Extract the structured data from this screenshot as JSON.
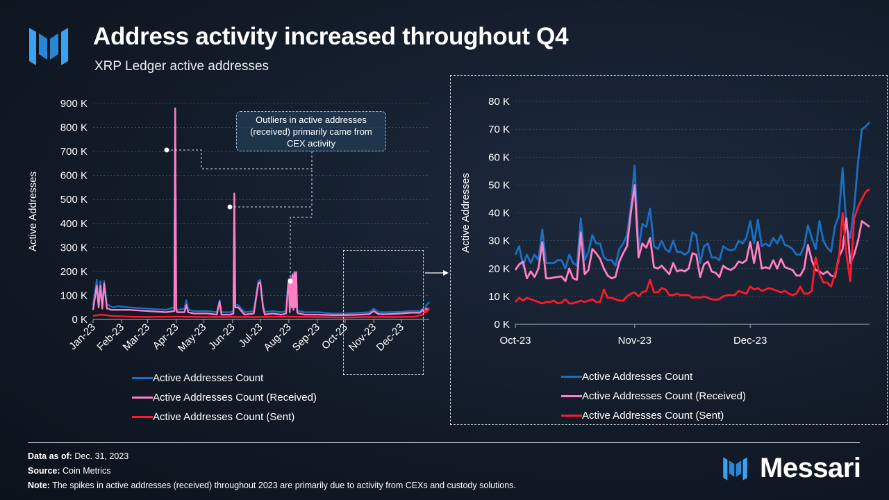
{
  "header": {
    "title": "Address activity increased throughout Q4",
    "subtitle": "XRP Ledger active addresses"
  },
  "colors": {
    "total": "#1a6fc2",
    "received": "#ff7fc4",
    "sent": "#ff1a2a"
  },
  "annotation": "Outliers in active addresses (received) primarily came from CEX activity",
  "chart_data": [
    {
      "type": "line",
      "id": "full-year",
      "xlabel": "",
      "ylabel": "Active Addresses",
      "ylim": [
        0,
        900000
      ],
      "yticks": [
        0,
        100000,
        200000,
        300000,
        400000,
        500000,
        600000,
        700000,
        800000,
        900000
      ],
      "ytick_labels": [
        "0 K",
        "100 K",
        "200 K",
        "300 K",
        "400 K",
        "500 K",
        "600 K",
        "700 K",
        "800 K",
        "900 K"
      ],
      "xtick_labels": [
        "Jan-23",
        "Feb-23",
        "Mar-23",
        "Apr-23",
        "May-23",
        "Jun-23",
        "Jul-23",
        "Aug-23",
        "Sep-23",
        "Oct-23",
        "Nov-23",
        "Dec-23"
      ],
      "xlim": [
        1,
        365
      ],
      "xtick_days": [
        1,
        32,
        60,
        91,
        121,
        152,
        182,
        213,
        244,
        274,
        305,
        335
      ],
      "series": [
        {
          "name": "Active Addresses Count",
          "x": [
            1,
            5,
            7,
            9,
            11,
            13,
            16,
            18,
            20,
            23,
            28,
            40,
            60,
            80,
            89,
            90,
            91,
            92,
            93,
            100,
            102,
            104,
            110,
            125,
            135,
            138,
            140,
            150,
            153,
            154,
            155,
            158,
            165,
            175,
            180,
            182,
            185,
            187,
            195,
            205,
            210,
            212,
            213,
            214,
            215,
            216,
            217,
            218,
            219,
            220,
            221,
            222,
            223,
            225,
            230,
            245,
            260,
            274,
            290,
            300,
            305,
            310,
            320,
            335,
            345,
            355,
            358,
            360,
            362,
            365
          ],
          "y": [
            60000,
            165000,
            70000,
            160000,
            60000,
            160000,
            60000,
            60000,
            55000,
            50000,
            55000,
            50000,
            45000,
            40000,
            50000,
            880000,
            50000,
            40000,
            40000,
            45000,
            80000,
            40000,
            35000,
            35000,
            30000,
            80000,
            30000,
            30000,
            35000,
            520000,
            60000,
            60000,
            30000,
            35000,
            160000,
            165000,
            60000,
            30000,
            35000,
            30000,
            35000,
            145000,
            170000,
            40000,
            180000,
            60000,
            190000,
            50000,
            200000,
            60000,
            200000,
            40000,
            35000,
            35000,
            30000,
            30000,
            25000,
            25000,
            28000,
            30000,
            45000,
            30000,
            30000,
            32000,
            35000,
            35000,
            45000,
            40000,
            60000,
            72000
          ]
        },
        {
          "name": "Active Addresses Count (Received)",
          "x": [
            1,
            5,
            7,
            9,
            11,
            13,
            16,
            18,
            20,
            23,
            28,
            40,
            60,
            80,
            89,
            90,
            91,
            92,
            93,
            100,
            102,
            104,
            110,
            125,
            135,
            138,
            140,
            150,
            153,
            154,
            155,
            158,
            165,
            175,
            180,
            182,
            185,
            187,
            195,
            205,
            210,
            212,
            213,
            214,
            215,
            216,
            217,
            218,
            219,
            220,
            221,
            222,
            223,
            225,
            230,
            245,
            260,
            274,
            290,
            300,
            305,
            310,
            320,
            335,
            345,
            355,
            358,
            360,
            362,
            365
          ],
          "y": [
            40000,
            140000,
            50000,
            140000,
            45000,
            150000,
            45000,
            45000,
            40000,
            40000,
            40000,
            40000,
            35000,
            30000,
            35000,
            880000,
            40000,
            30000,
            30000,
            30000,
            60000,
            30000,
            25000,
            25000,
            20000,
            75000,
            20000,
            20000,
            25000,
            525000,
            50000,
            50000,
            20000,
            25000,
            150000,
            155000,
            50000,
            20000,
            25000,
            20000,
            25000,
            130000,
            165000,
            30000,
            170000,
            50000,
            185000,
            40000,
            195000,
            50000,
            195000,
            30000,
            25000,
            25000,
            20000,
            20000,
            18000,
            18000,
            20000,
            22000,
            35000,
            22000,
            22000,
            25000,
            28000,
            28000,
            40000,
            30000,
            45000,
            38000
          ]
        },
        {
          "name": "Active Addresses Count (Sent)",
          "x": [
            1,
            10,
            20,
            40,
            60,
            90,
            120,
            150,
            180,
            210,
            240,
            274,
            300,
            330,
            350,
            358,
            360,
            362,
            365
          ],
          "y": [
            15000,
            20000,
            15000,
            12000,
            10000,
            12000,
            10000,
            10000,
            10000,
            12000,
            10000,
            8000,
            10000,
            10000,
            12000,
            20000,
            40000,
            30000,
            48000
          ]
        }
      ]
    },
    {
      "type": "line",
      "id": "q4-zoom",
      "xlabel": "",
      "ylabel": "Active Addresses",
      "ylim": [
        0,
        80000
      ],
      "yticks": [
        0,
        10000,
        20000,
        30000,
        40000,
        50000,
        60000,
        70000,
        80000
      ],
      "ytick_labels": [
        "0 K",
        "10 K",
        "20 K",
        "30 K",
        "40 K",
        "50 K",
        "60 K",
        "70 K",
        "80 K"
      ],
      "xtick_labels": [
        "Oct-23",
        "Nov-23",
        "Dec-23"
      ],
      "xtick_days": [
        0,
        31,
        61
      ],
      "xlim": [
        0,
        92
      ],
      "series": [
        {
          "name": "Active Addresses Count",
          "x": [
            0,
            1,
            2,
            3,
            4,
            5,
            6,
            7,
            8,
            9,
            10,
            11,
            12,
            13,
            14,
            15,
            16,
            17,
            18,
            19,
            20,
            21,
            22,
            23,
            24,
            25,
            26,
            27,
            28,
            29,
            30,
            31,
            32,
            33,
            34,
            35,
            36,
            37,
            38,
            39,
            40,
            41,
            42,
            43,
            44,
            45,
            46,
            47,
            48,
            49,
            50,
            51,
            52,
            53,
            54,
            55,
            56,
            57,
            58,
            59,
            60,
            61,
            62,
            63,
            64,
            65,
            66,
            67,
            68,
            69,
            70,
            71,
            72,
            73,
            74,
            75,
            76,
            77,
            78,
            79,
            80,
            81,
            82,
            83,
            84,
            85,
            86,
            87,
            88,
            89,
            90,
            91,
            92
          ],
          "y": [
            25000,
            28000,
            21000,
            25000,
            22000,
            25000,
            23000,
            34000,
            22000,
            22000,
            22000,
            23000,
            23000,
            20000,
            25000,
            22000,
            21000,
            38000,
            23000,
            26000,
            32000,
            29000,
            29000,
            24000,
            23000,
            23000,
            21000,
            27000,
            29000,
            32000,
            42000,
            57000,
            27000,
            36000,
            35000,
            41500,
            28000,
            27000,
            30000,
            27000,
            26000,
            30000,
            26000,
            26000,
            25000,
            26000,
            33000,
            32000,
            22000,
            28000,
            29000,
            24000,
            24000,
            23000,
            28000,
            27000,
            26500,
            27000,
            30000,
            29000,
            31000,
            37000,
            29000,
            37500,
            28000,
            29000,
            28000,
            31000,
            29000,
            32000,
            28500,
            28000,
            27000,
            25000,
            25000,
            28000,
            35500,
            31000,
            27000,
            37000,
            30000,
            27500,
            26000,
            35000,
            39000,
            56000,
            35000,
            31000,
            42000,
            58000,
            70000,
            71000,
            72500
          ]
        },
        {
          "name": "Active Addresses Count (Received)",
          "x": [
            0,
            1,
            2,
            3,
            4,
            5,
            6,
            7,
            8,
            9,
            10,
            11,
            12,
            13,
            14,
            15,
            16,
            17,
            18,
            19,
            20,
            21,
            22,
            23,
            24,
            25,
            26,
            27,
            28,
            29,
            30,
            31,
            32,
            33,
            34,
            35,
            36,
            37,
            38,
            39,
            40,
            41,
            42,
            43,
            44,
            45,
            46,
            47,
            48,
            49,
            50,
            51,
            52,
            53,
            54,
            55,
            56,
            57,
            58,
            59,
            60,
            61,
            62,
            63,
            64,
            65,
            66,
            67,
            68,
            69,
            70,
            71,
            72,
            73,
            74,
            75,
            76,
            77,
            78,
            79,
            80,
            81,
            82,
            83,
            84,
            85,
            86,
            87,
            88,
            89,
            90,
            91,
            92
          ],
          "y": [
            19500,
            21500,
            22500,
            16500,
            19000,
            17000,
            20000,
            29500,
            16500,
            16500,
            16800,
            17000,
            17200,
            15500,
            20000,
            16500,
            16000,
            33000,
            18000,
            19500,
            27000,
            25500,
            23500,
            20000,
            17500,
            16500,
            17000,
            22500,
            25500,
            28000,
            40000,
            50000,
            24000,
            29000,
            27500,
            31000,
            20500,
            20000,
            21000,
            19500,
            18000,
            22000,
            19000,
            19500,
            19000,
            20000,
            25500,
            25000,
            17000,
            21500,
            22500,
            19000,
            18500,
            17000,
            21000,
            20000,
            19500,
            20500,
            22500,
            22000,
            23000,
            29500,
            22000,
            29500,
            20000,
            20500,
            20000,
            23000,
            20000,
            23500,
            20500,
            20000,
            19500,
            17500,
            17500,
            20000,
            28500,
            23000,
            19500,
            19000,
            18000,
            19000,
            17500,
            17000,
            24000,
            27000,
            38000,
            22000,
            25000,
            30000,
            37000,
            36000,
            35000
          ]
        },
        {
          "name": "Active Addresses Count (Sent)",
          "x": [
            0,
            1,
            2,
            3,
            4,
            5,
            6,
            7,
            8,
            9,
            10,
            11,
            12,
            13,
            14,
            15,
            16,
            17,
            18,
            19,
            20,
            21,
            22,
            23,
            24,
            25,
            26,
            27,
            28,
            29,
            30,
            31,
            32,
            33,
            34,
            35,
            36,
            37,
            38,
            39,
            40,
            41,
            42,
            43,
            44,
            45,
            46,
            47,
            48,
            49,
            50,
            51,
            52,
            53,
            54,
            55,
            56,
            57,
            58,
            59,
            60,
            61,
            62,
            63,
            64,
            65,
            66,
            67,
            68,
            69,
            70,
            71,
            72,
            73,
            74,
            75,
            76,
            77,
            78,
            79,
            80,
            81,
            82,
            83,
            84,
            85,
            86,
            87,
            88,
            89,
            90,
            91,
            92
          ],
          "y": [
            8000,
            9500,
            8500,
            9500,
            9000,
            8500,
            8000,
            7500,
            8000,
            8000,
            8500,
            7500,
            7800,
            9000,
            7500,
            7500,
            8000,
            8500,
            8000,
            8500,
            9000,
            8000,
            8000,
            12500,
            9500,
            9500,
            9000,
            8500,
            8500,
            10000,
            11000,
            11500,
            10000,
            11500,
            12000,
            16000,
            11500,
            11500,
            13000,
            12500,
            10500,
            10500,
            11000,
            10500,
            10500,
            10500,
            9500,
            9800,
            9500,
            10000,
            9500,
            9000,
            8800,
            9000,
            10000,
            10500,
            10500,
            10500,
            12000,
            11500,
            11000,
            13500,
            12500,
            13000,
            12000,
            12500,
            13000,
            12500,
            12000,
            11500,
            12000,
            11000,
            10500,
            11000,
            13500,
            11000,
            11000,
            12000,
            24000,
            18000,
            15000,
            15000,
            13500,
            18000,
            23000,
            40000,
            25000,
            15500,
            38000,
            42000,
            45000,
            47500,
            48500
          ]
        }
      ]
    }
  ],
  "legend": [
    "Active Addresses Count",
    "Active Addresses Count (Received)",
    "Active Addresses Count (Sent)"
  ],
  "footer": {
    "data_as_of_label": "Data as of:",
    "data_as_of": "Dec. 31, 2023",
    "source_label": "Source:",
    "source": "Coin Metrics",
    "note_label": "Note:",
    "note": "The spikes in active addresses (received) throughout 2023 are primarily due to activity from CEXs and custody solutions."
  },
  "brand": "Messari"
}
